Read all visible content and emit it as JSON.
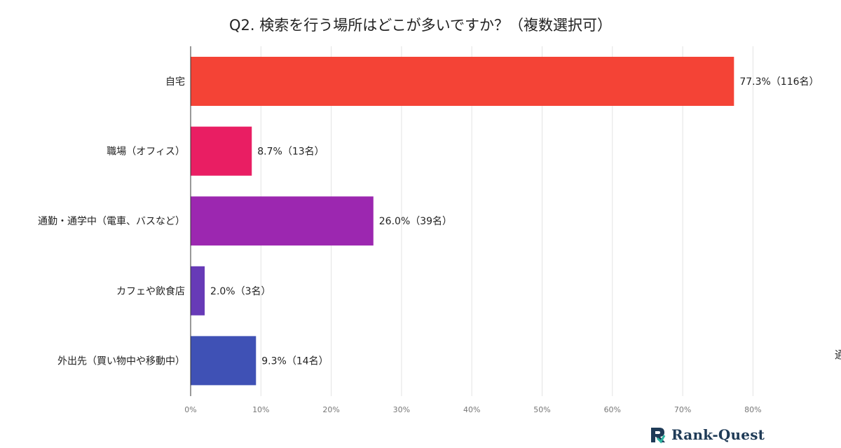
{
  "chart_data": {
    "type": "bar",
    "orientation": "horizontal",
    "title": "Q2. 検索を行う場所はどこが多いですか？（複数選択可）",
    "categories": [
      "自宅",
      "職場（オフィス）",
      "通勤・通学中（電車、バスなど）",
      "カフェや飲食店",
      "外出先（買い物中や移動中）"
    ],
    "values": [
      77.3,
      8.7,
      26.0,
      2.0,
      9.3
    ],
    "data_labels": [
      "77.3%（116名）",
      "8.7%（13名）",
      "26.0%（39名）",
      "2.0%（3名）",
      "9.3%（14名）"
    ],
    "colors": [
      "#f44336",
      "#e91e63",
      "#9c27b0",
      "#673ab7",
      "#3f51b5"
    ],
    "xlim": [
      0,
      82
    ],
    "xticks": [
      0,
      10,
      20,
      30,
      40,
      50,
      60,
      70,
      80
    ],
    "xtick_labels": [
      "0%",
      "10%",
      "20%",
      "30%",
      "40%",
      "50%",
      "60%",
      "70%",
      "80%"
    ],
    "grid": true
  },
  "edge_text": "通",
  "logo": {
    "text": "Rank-Quest",
    "icon": "rank-quest-logo-icon",
    "color": "#1f3b57"
  }
}
